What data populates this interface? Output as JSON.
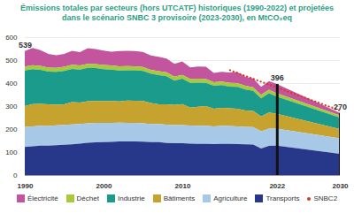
{
  "chart_data": {
    "type": "area",
    "stacked": true,
    "title": "Émissions totales par secteurs (hors UTCATF) historiques (1990-2022) et projetées dans le scénario SNBC 3 provisoire (2023-2030), en MtCO₂eq",
    "x": [
      1990,
      1991,
      1992,
      1993,
      1994,
      1995,
      1996,
      1997,
      1998,
      1999,
      2000,
      2001,
      2002,
      2003,
      2004,
      2005,
      2006,
      2007,
      2008,
      2009,
      2010,
      2011,
      2012,
      2013,
      2014,
      2015,
      2016,
      2017,
      2018,
      2019,
      2020,
      2021,
      2022,
      2030
    ],
    "xlim": [
      1990,
      2030
    ],
    "xticks": [
      1990,
      2000,
      2010,
      2022,
      2030
    ],
    "ylim": [
      0,
      600
    ],
    "yticks": [
      0,
      100,
      200,
      300,
      400,
      500,
      600
    ],
    "grid": true,
    "series": [
      {
        "name": "Électricité",
        "color": "#c2559e",
        "values": [
          67,
          75,
          68,
          60,
          55,
          56,
          60,
          58,
          68,
          65,
          62,
          60,
          66,
          66,
          66,
          66,
          62,
          62,
          60,
          56,
          58,
          50,
          53,
          53,
          40,
          42,
          45,
          48,
          40,
          38,
          35,
          38,
          40,
          10
        ]
      },
      {
        "name": "Déchet",
        "color": "#a7c93c",
        "values": [
          17,
          17,
          17,
          17,
          17,
          18,
          18,
          18,
          18,
          18,
          18,
          18,
          18,
          18,
          17,
          17,
          17,
          17,
          17,
          17,
          17,
          17,
          17,
          17,
          16,
          16,
          16,
          16,
          16,
          16,
          15,
          15,
          15,
          10
        ]
      },
      {
        "name": "Industrie",
        "color": "#1b9b8b",
        "values": [
          155,
          152,
          148,
          142,
          143,
          145,
          145,
          144,
          145,
          143,
          140,
          137,
          135,
          132,
          133,
          131,
          128,
          127,
          122,
          106,
          110,
          108,
          105,
          101,
          100,
          99,
          95,
          96,
          91,
          87,
          79,
          84,
          75,
          50
        ]
      },
      {
        "name": "Bâtiments",
        "color": "#c6a22e",
        "values": [
          90,
          97,
          96,
          95,
          90,
          90,
          97,
          93,
          96,
          95,
          94,
          95,
          92,
          97,
          96,
          97,
          91,
          86,
          89,
          88,
          92,
          78,
          83,
          86,
          76,
          78,
          77,
          76,
          71,
          70,
          65,
          70,
          64,
          40
        ]
      },
      {
        "name": "Agriculture",
        "color": "#a8c8e8",
        "values": [
          88,
          87,
          86,
          85,
          86,
          86,
          86,
          85,
          85,
          85,
          84,
          83,
          82,
          81,
          81,
          80,
          79,
          79,
          80,
          79,
          79,
          78,
          78,
          78,
          77,
          78,
          77,
          77,
          76,
          76,
          75,
          75,
          74,
          68
        ]
      },
      {
        "name": "Transports",
        "color": "#27378a",
        "values": [
          122,
          125,
          128,
          128,
          130,
          132,
          134,
          137,
          140,
          142,
          143,
          144,
          146,
          146,
          146,
          145,
          143,
          143,
          139,
          138,
          138,
          137,
          136,
          136,
          135,
          136,
          136,
          135,
          134,
          133,
          115,
          127,
          128,
          92
        ]
      },
      {
        "name": "SNBC2",
        "color": "#d9381e",
        "type": "line",
        "line_style": "dotted",
        "values": [
          null,
          null,
          null,
          null,
          null,
          null,
          null,
          null,
          null,
          null,
          null,
          null,
          null,
          null,
          null,
          null,
          null,
          null,
          null,
          null,
          null,
          null,
          null,
          null,
          null,
          null,
          458,
          445,
          432,
          420,
          407,
          395,
          382,
          282
        ]
      }
    ],
    "annotations": [
      {
        "x": 1990,
        "y": 539,
        "text": "539"
      },
      {
        "x": 2022,
        "y": 396,
        "text": "396"
      },
      {
        "x": 2030,
        "y": 270,
        "text": "270"
      }
    ],
    "rules": [
      {
        "x": 2022,
        "y": 396
      },
      {
        "x": 2030,
        "y": 270
      }
    ]
  }
}
